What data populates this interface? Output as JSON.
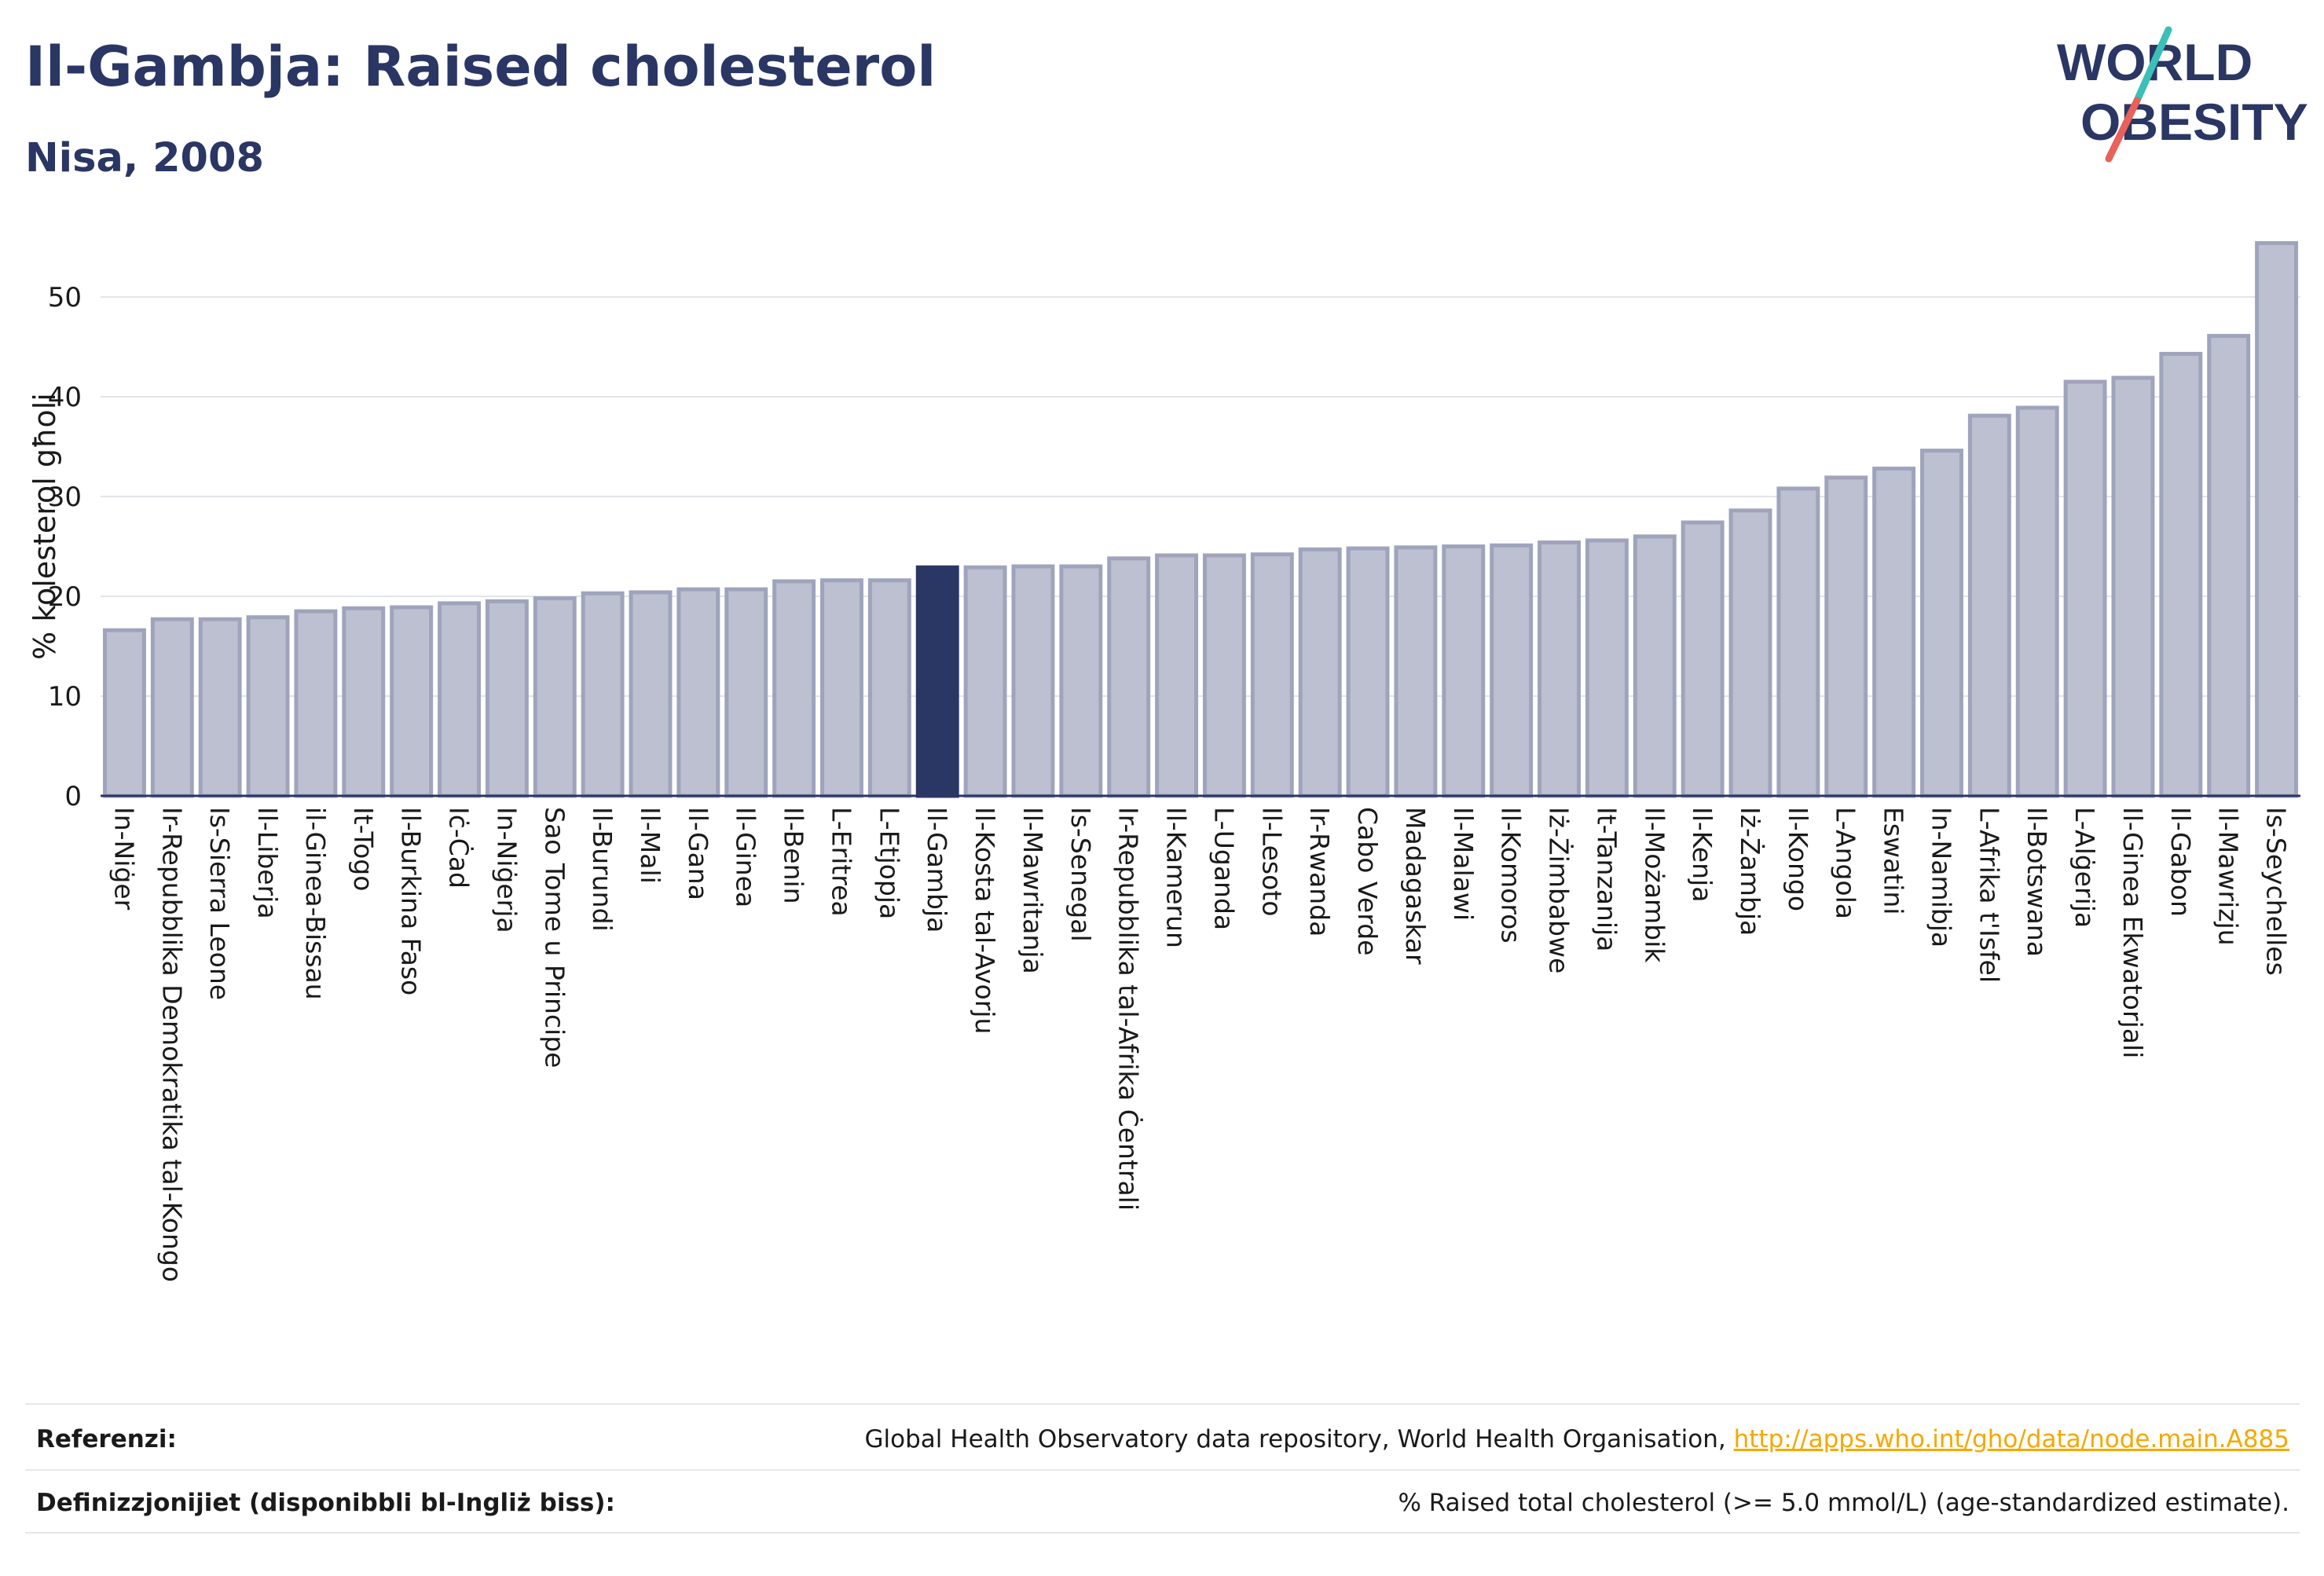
{
  "header": {
    "title": "Il-Gambja: Raised cholesterol",
    "subtitle": "Nisa, 2008"
  },
  "logo": {
    "line1": "WORLD",
    "line2": "OBESITY"
  },
  "colors": {
    "title": "#2a3663",
    "bar": "#bcc0d0",
    "bar_stroke": "#9fa4bc",
    "highlight": "#2a3663",
    "link": "#f5a800"
  },
  "chart_data": {
    "type": "bar",
    "ylabel": "% kolesterol għoli",
    "ylim": [
      0,
      56
    ],
    "yticks": [
      0,
      10,
      20,
      30,
      40,
      50
    ],
    "grid": true,
    "highlight": "Il-Gambja",
    "categories": [
      "In-Niġer",
      "Ir-Repubblika Demokratika tal-Kongo",
      "Is-Sierra Leone",
      "Il-Liberja",
      "il-Ginea-Bissau",
      "It-Togo",
      "Il-Burkina Faso",
      "Iċ-Ċad",
      "In-Niġerja",
      "Sao Tome u Principe",
      "Il-Burundi",
      "Il-Mali",
      "Il-Gana",
      "Il-Ginea",
      "Il-Benin",
      "L-Eritrea",
      "L-Etjopja",
      "Il-Gambja",
      "Il-Kosta tal-Avorju",
      "Il-Mawritanja",
      "Is-Senegal",
      "Ir-Repubblika tal-Afrika Ċentrali",
      "Il-Kamerun",
      "L-Uganda",
      "Il-Lesoto",
      "Ir-Rwanda",
      "Cabo Verde",
      "Madagaskar",
      "Il-Malawi",
      "Il-Komoros",
      "Iż-Żimbabwe",
      "It-Tanzanija",
      "Il-Możambik",
      "Il-Kenja",
      "Iż-Żambja",
      "Il-Kongo",
      "L-Angola",
      "Eswatini",
      "In-Namibja",
      "L-Afrika t'Isfel",
      "Il-Botswana",
      "L-Alġerija",
      "Il-Ginea Ekwatorjali",
      "Il-Gabon",
      "Il-Mawrizju",
      "Is-Seychelles"
    ],
    "values": [
      16.6,
      17.7,
      17.7,
      17.9,
      18.5,
      18.8,
      18.9,
      19.3,
      19.5,
      19.8,
      20.3,
      20.4,
      20.7,
      20.7,
      21.5,
      21.6,
      21.6,
      22.9,
      22.9,
      23.0,
      23.0,
      23.8,
      24.1,
      24.1,
      24.2,
      24.7,
      24.8,
      24.9,
      25.0,
      25.1,
      25.4,
      25.6,
      26.0,
      27.4,
      28.6,
      30.8,
      31.9,
      32.8,
      34.6,
      38.1,
      38.9,
      41.5,
      41.9,
      44.3,
      46.1,
      55.4
    ]
  },
  "footer": {
    "references_label": "Referenzi:",
    "references_text": "Global Health Observatory data repository, World Health Organisation, ",
    "references_link": "http://apps.who.int/gho/data/node.main.A885",
    "definitions_label": "Definizzjonijiet (disponibbli bl-Ingliż biss):",
    "definitions_text": "% Raised total cholesterol (>= 5.0 mmol/L) (age-standardized estimate)."
  }
}
